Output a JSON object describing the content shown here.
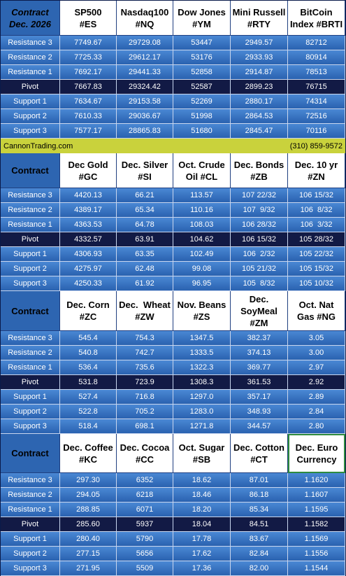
{
  "blocks": [
    {
      "header": [
        "Contract\nDec. 2026",
        "SP500\n#ES",
        "Nasdaq100\n#NQ",
        "Dow Jones\n#YM",
        "Mini Russell\n#RTY",
        "BitCoin\nIndex #BRTI"
      ],
      "rows": [
        [
          "Resistance 3",
          "7749.67",
          "29729.08",
          "53447",
          "2949.57",
          "82712"
        ],
        [
          "Resistance 2",
          "7725.33",
          "29612.17",
          "53176",
          "2933.93",
          "80914"
        ],
        [
          "Resistance 1",
          "7692.17",
          "29441.33",
          "52858",
          "2914.87",
          "78513"
        ],
        [
          "Pivot",
          "7667.83",
          "29324.42",
          "52587",
          "2899.23",
          "76715"
        ],
        [
          "Support 1",
          "7634.67",
          "29153.58",
          "52269",
          "2880.17",
          "74314"
        ],
        [
          "Support 2",
          "7610.33",
          "29036.67",
          "51998",
          "2864.53",
          "72516"
        ],
        [
          "Support 3",
          "7577.17",
          "28865.83",
          "51680",
          "2845.47",
          "70116"
        ]
      ]
    },
    {
      "header": [
        "Contract",
        "Dec Gold\n#GC",
        "Dec. Silver\n#SI",
        "Oct. Crude\nOil #CL",
        "Dec. Bonds\n#ZB",
        "Dec. 10 yr\n#ZN"
      ],
      "rows": [
        [
          "Resistance 3",
          "4420.13",
          "66.21",
          "113.57",
          "107 22/32",
          "106 15/32"
        ],
        [
          "Resistance 2",
          "4389.17",
          "65.34",
          "110.16",
          "107  9/32",
          "106  8/32"
        ],
        [
          "Resistance 1",
          "4363.53",
          "64.78",
          "108.03",
          "106 28/32",
          "106  3/32"
        ],
        [
          "Pivot",
          "4332.57",
          "63.91",
          "104.62",
          "106 15/32",
          "105 28/32"
        ],
        [
          "Support 1",
          "4306.93",
          "63.35",
          "102.49",
          "106  2/32",
          "105 22/32"
        ],
        [
          "Support 2",
          "4275.97",
          "62.48",
          "99.08",
          "105 21/32",
          "105 15/32"
        ],
        [
          "Support 3",
          "4250.33",
          "61.92",
          "96.95",
          "105  8/32",
          "105 10/32"
        ]
      ]
    },
    {
      "header": [
        "Contract",
        "Dec. Corn\n#ZC",
        "Dec.  Wheat\n#ZW",
        "Nov. Beans\n#ZS",
        "Dec.\nSoyMeal\n#ZM",
        "Oct. Nat\nGas #NG"
      ],
      "rows": [
        [
          "Resistance 3",
          "545.4",
          "754.3",
          "1347.5",
          "382.37",
          "3.05"
        ],
        [
          "Resistance 2",
          "540.8",
          "742.7",
          "1333.5",
          "374.13",
          "3.00"
        ],
        [
          "Resistance 1",
          "536.4",
          "735.6",
          "1322.3",
          "369.77",
          "2.97"
        ],
        [
          "Pivot",
          "531.8",
          "723.9",
          "1308.3",
          "361.53",
          "2.92"
        ],
        [
          "Support 1",
          "527.4",
          "716.8",
          "1297.0",
          "357.17",
          "2.89"
        ],
        [
          "Support 2",
          "522.8",
          "705.2",
          "1283.0",
          "348.93",
          "2.84"
        ],
        [
          "Support 3",
          "518.4",
          "698.1",
          "1271.8",
          "344.57",
          "2.80"
        ]
      ]
    },
    {
      "header": [
        "Contract",
        "Dec. Coffee\n#KC",
        "Dec. Cocoa\n#CC",
        "Oct. Sugar\n#SB",
        "Dec. Cotton\n#CT",
        "Dec. Euro\nCurrency"
      ],
      "rows": [
        [
          "Resistance 3",
          "297.30",
          "6352",
          "18.62",
          "87.01",
          "1.1620"
        ],
        [
          "Resistance 2",
          "294.05",
          "6218",
          "18.46",
          "86.18",
          "1.1607"
        ],
        [
          "Resistance 1",
          "288.85",
          "6071",
          "18.20",
          "85.34",
          "1.1595"
        ],
        [
          "Pivot",
          "285.60",
          "5937",
          "18.04",
          "84.51",
          "1.1582"
        ],
        [
          "Support 1",
          "280.40",
          "5790",
          "17.78",
          "83.67",
          "1.1569"
        ],
        [
          "Support 2",
          "277.15",
          "5656",
          "17.62",
          "82.84",
          "1.1556"
        ],
        [
          "Support 3",
          "271.95",
          "5509",
          "17.36",
          "82.00",
          "1.1544"
        ]
      ]
    }
  ],
  "banner": {
    "site": "CannonTrading.com",
    "phone": "(310) 859-9572"
  }
}
